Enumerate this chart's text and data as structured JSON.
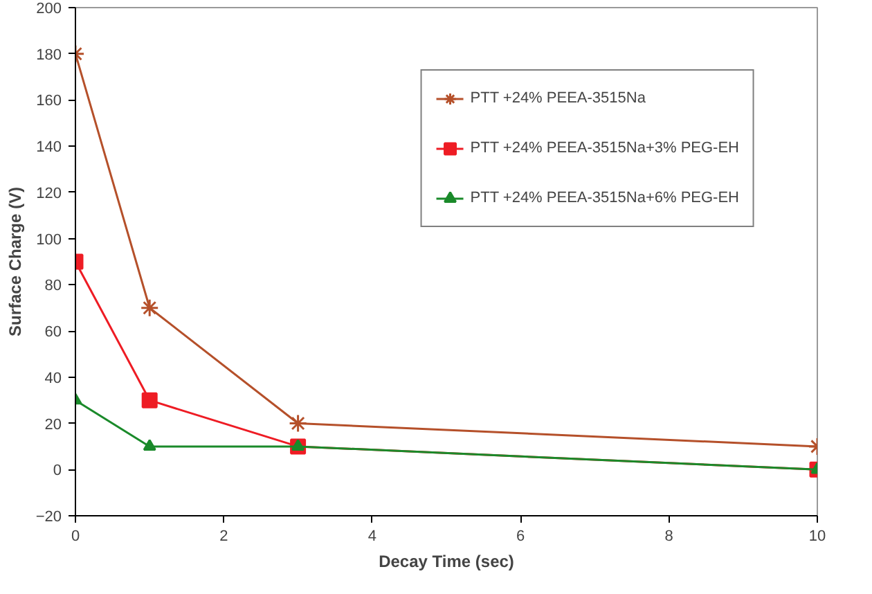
{
  "chart_data": {
    "type": "line",
    "xlabel": "Decay Time (sec)",
    "ylabel": "Surface Charge (V)",
    "x": [
      0,
      1,
      3,
      10
    ],
    "xlim": [
      0,
      10
    ],
    "xticks": [
      0,
      2,
      4,
      6,
      8,
      10
    ],
    "ylim": [
      -20,
      200
    ],
    "yticks": [
      -20,
      0,
      20,
      40,
      60,
      80,
      100,
      120,
      140,
      160,
      180,
      200
    ],
    "grid": false,
    "legend": "top right",
    "line_style": "solid",
    "series": [
      {
        "name": "PTT +24% PEEA-3515Na",
        "color": "#b5502a",
        "marker": "cross",
        "values": [
          180,
          70,
          20,
          10
        ]
      },
      {
        "name": "PTT +24% PEEA-3515Na+3% PEG-EH",
        "color": "#ee1c24",
        "marker": "square",
        "values": [
          90,
          30,
          10,
          0
        ]
      },
      {
        "name": "PTT +24% PEEA-3515Na+6% PEG-EH",
        "color": "#1a8a2a",
        "marker": "triangle",
        "values": [
          30,
          10,
          10,
          0
        ]
      }
    ]
  }
}
